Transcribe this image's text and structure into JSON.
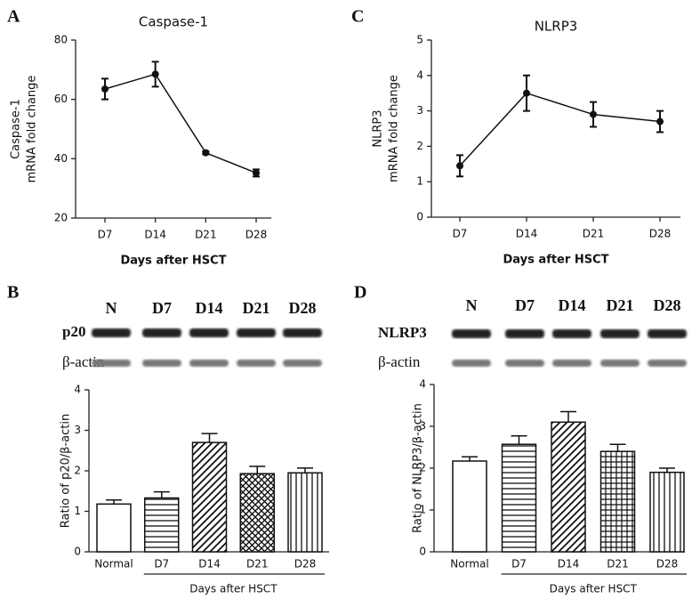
{
  "chart_data": [
    {
      "type": "line",
      "panel": "A",
      "title": "Caspase-1",
      "ylabel": [
        "Caspase-1",
        "mRNA fold change"
      ],
      "xlabel": "Days after HSCT",
      "categories": [
        "D7",
        "D14",
        "D21",
        "D28"
      ],
      "values": [
        63.5,
        68.5,
        42,
        35.2
      ],
      "errors": [
        3.5,
        4.2,
        0.5,
        1.2
      ],
      "ylim": [
        20,
        80
      ],
      "yticks": [
        20,
        40,
        60,
        80
      ],
      "color": "#111111"
    },
    {
      "type": "line",
      "panel": "C",
      "title": "NLRP3",
      "ylabel": [
        "NLRP3",
        "mRNA fold change"
      ],
      "xlabel": "Days after HSCT",
      "categories": [
        "D7",
        "D14",
        "D21",
        "D28"
      ],
      "values": [
        1.45,
        3.5,
        2.9,
        2.7
      ],
      "errors": [
        0.3,
        0.5,
        0.35,
        0.3
      ],
      "ylim": [
        0,
        5
      ],
      "yticks": [
        0,
        1,
        2,
        3,
        4,
        5
      ],
      "color": "#111111"
    },
    {
      "type": "bar",
      "panel": "B",
      "ylabel": [
        "Ratio of p20/β-actin"
      ],
      "xlabel": "Days after HSCT",
      "blot": {
        "lanes": [
          "N",
          "D7",
          "D14",
          "D21",
          "D28"
        ],
        "rows": [
          "p20",
          "β-actin"
        ]
      },
      "categories": [
        "Normal",
        "D7",
        "D14",
        "D21",
        "D28"
      ],
      "values": [
        1.18,
        1.33,
        2.7,
        1.93,
        1.95
      ],
      "errors": [
        0.1,
        0.15,
        0.22,
        0.18,
        0.12
      ],
      "patterns": [
        "none",
        "hlines",
        "diag",
        "cross",
        "vlines"
      ],
      "ylim": [
        0,
        4
      ],
      "yticks": [
        0,
        1,
        2,
        3,
        4
      ],
      "color": "#111111"
    },
    {
      "type": "bar",
      "panel": "D",
      "ylabel": [
        "Ratio of NLRP3/β-actin"
      ],
      "xlabel": "Days after HSCT",
      "blot": {
        "lanes": [
          "N",
          "D7",
          "D14",
          "D21",
          "D28"
        ],
        "rows": [
          "NLRP3",
          "β-actin"
        ]
      },
      "categories": [
        "Normal",
        "D7",
        "D14",
        "D21",
        "D28"
      ],
      "values": [
        2.17,
        2.57,
        3.1,
        2.4,
        1.9
      ],
      "errors": [
        0.1,
        0.2,
        0.25,
        0.17,
        0.1
      ],
      "patterns": [
        "none",
        "hlines",
        "diag",
        "grid",
        "vlines"
      ],
      "ylim": [
        0,
        4
      ],
      "yticks": [
        0,
        1,
        2,
        3,
        4
      ],
      "color": "#111111"
    }
  ]
}
